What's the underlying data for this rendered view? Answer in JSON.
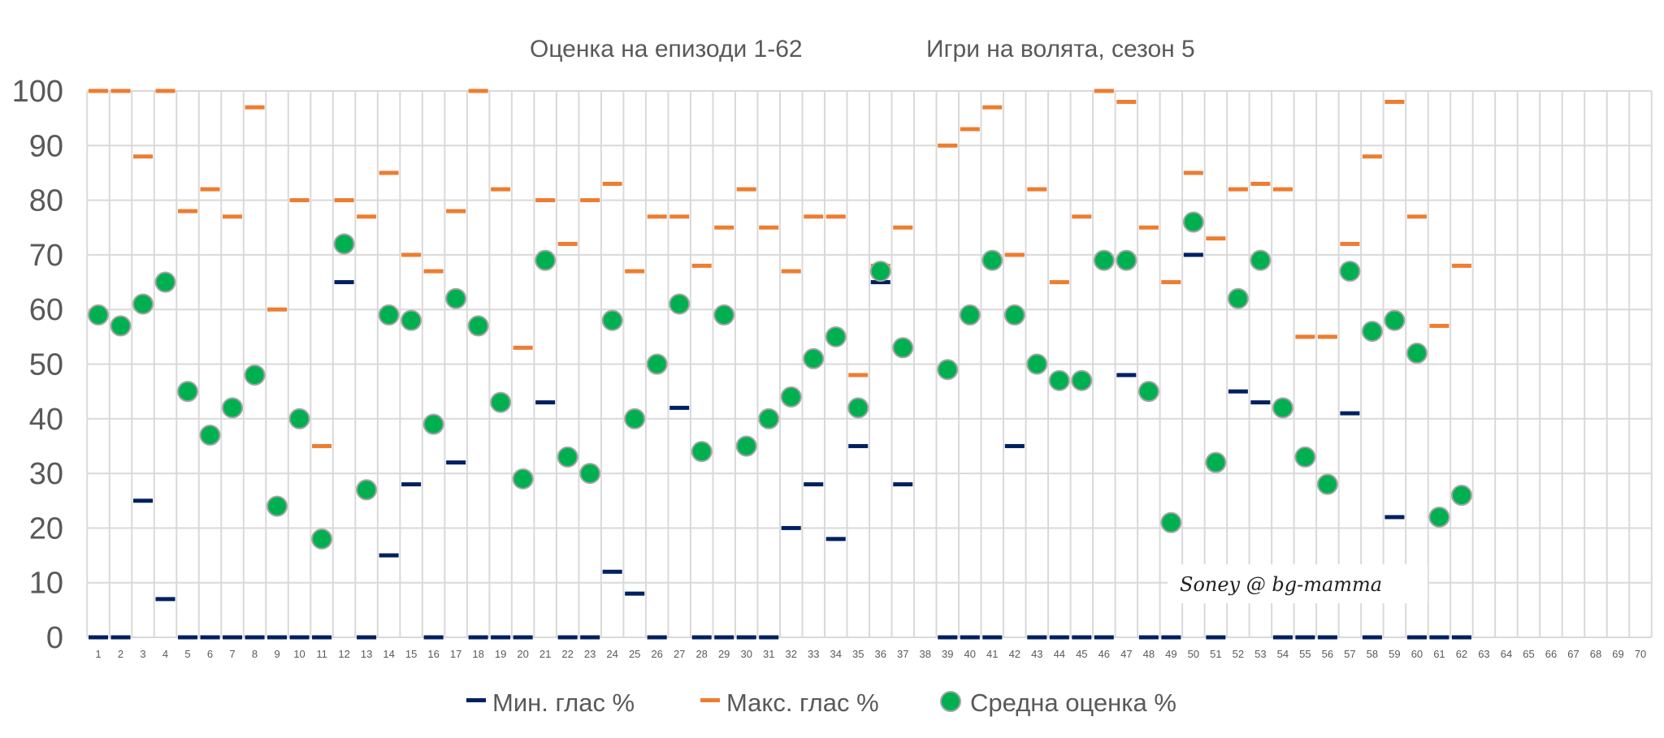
{
  "chart_data": {
    "type": "scatter",
    "title_left": "Оценка на епизоди 1-62",
    "title_right": "Игри на волята, сезон 5",
    "watermark": "Soney @ bg-mamma",
    "xlabel": "",
    "ylabel": "",
    "ylim": [
      0,
      100
    ],
    "yticks": [
      0,
      10,
      20,
      30,
      40,
      50,
      60,
      70,
      80,
      90,
      100
    ],
    "xlim": [
      1,
      70
    ],
    "grid": true,
    "legend_position": "bottom",
    "colors": {
      "min": "#002060",
      "max": "#ED7D31",
      "avg": "#00B050",
      "grid": "#D9D9D9"
    },
    "x": [
      1,
      2,
      3,
      4,
      5,
      6,
      7,
      8,
      9,
      10,
      11,
      12,
      13,
      14,
      15,
      16,
      17,
      18,
      19,
      20,
      21,
      22,
      23,
      24,
      25,
      26,
      27,
      28,
      29,
      30,
      31,
      32,
      33,
      34,
      35,
      36,
      37,
      38,
      39,
      40,
      41,
      42,
      43,
      44,
      45,
      46,
      47,
      48,
      49,
      50,
      51,
      52,
      53,
      54,
      55,
      56,
      57,
      58,
      59,
      60,
      61,
      62
    ],
    "series": [
      {
        "name": "Мин. глас %",
        "marker": "dash",
        "values": [
          0,
          0,
          25,
          7,
          0,
          0,
          0,
          0,
          0,
          0,
          0,
          65,
          0,
          15,
          28,
          0,
          32,
          0,
          0,
          0,
          43,
          0,
          0,
          12,
          8,
          0,
          42,
          0,
          0,
          0,
          0,
          20,
          28,
          18,
          35,
          65,
          28,
          null,
          0,
          0,
          0,
          35,
          0,
          0,
          0,
          0,
          48,
          0,
          0,
          70,
          0,
          45,
          43,
          0,
          0,
          0,
          41,
          0,
          22,
          0,
          0,
          0
        ]
      },
      {
        "name": "Макс. глас %",
        "marker": "dash",
        "values": [
          100,
          100,
          88,
          100,
          78,
          82,
          77,
          97,
          60,
          80,
          35,
          80,
          77,
          85,
          70,
          67,
          78,
          100,
          82,
          53,
          80,
          72,
          80,
          83,
          67,
          77,
          77,
          68,
          75,
          82,
          75,
          67,
          77,
          77,
          48,
          68,
          75,
          null,
          90,
          93,
          97,
          70,
          82,
          65,
          77,
          100,
          98,
          75,
          65,
          85,
          73,
          82,
          83,
          82,
          55,
          55,
          72,
          88,
          98,
          77,
          57,
          68
        ]
      },
      {
        "name": "Средна оценка %",
        "marker": "circle",
        "values": [
          59,
          57,
          61,
          65,
          45,
          37,
          42,
          48,
          24,
          40,
          18,
          72,
          27,
          59,
          58,
          39,
          62,
          57,
          43,
          29,
          69,
          33,
          30,
          58,
          40,
          50,
          61,
          34,
          59,
          35,
          40,
          44,
          51,
          55,
          42,
          67,
          53,
          null,
          49,
          59,
          69,
          59,
          50,
          47,
          47,
          69,
          69,
          45,
          21,
          76,
          32,
          62,
          69,
          42,
          33,
          28,
          67,
          56,
          58,
          52,
          22,
          26
        ]
      }
    ]
  }
}
